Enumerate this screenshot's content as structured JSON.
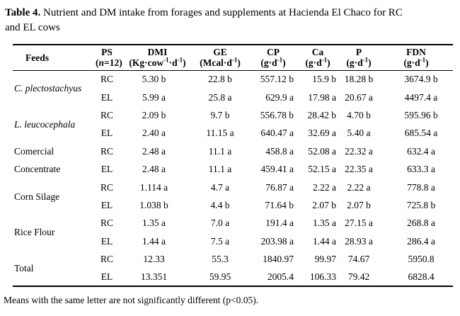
{
  "caption": {
    "label": "Table 4.",
    "line1": " Nutrient and DM intake from forages and supplements at Hacienda El Chaco for RC",
    "line2": "and EL cows"
  },
  "table": {
    "headers": {
      "feeds": {
        "label": "Feeds"
      },
      "ps": {
        "label": "PS",
        "unit_pre": "(",
        "unit_n": "n",
        "unit_post": "=12)"
      },
      "dmi": {
        "label": "DMI",
        "unit_pre": "(Kg·cow",
        "unit_sup1": "-1",
        "unit_mid": "·d",
        "unit_sup2": "-1",
        "unit_post": ")"
      },
      "ge": {
        "label": "GE",
        "unit_pre": "(Mcal·d",
        "unit_sup1": "-1",
        "unit_post": ")"
      },
      "cp": {
        "label": "CP",
        "unit_pre": "(g·d",
        "unit_sup1": "-1",
        "unit_post": ")"
      },
      "ca": {
        "label": "Ca",
        "unit_pre": "(g·d",
        "unit_sup1": "-1",
        "unit_post": ")"
      },
      "p": {
        "label": "P",
        "unit_pre": "(g·d",
        "unit_sup1": "-1",
        "unit_post": ")"
      },
      "fdn": {
        "label": "FDN",
        "unit_pre": "(g·d",
        "unit_sup1": "-1",
        "unit_post": ")"
      }
    },
    "groups": [
      {
        "feed": "C. plectostachyus",
        "italic": true,
        "rows": [
          [
            "RC",
            "5.30 b",
            "22.8 b",
            "557.12 b",
            "15.9 b",
            "18.28 b",
            "3674.9 b"
          ],
          [
            "EL",
            "5.99 a",
            "25.8 a",
            "629.9 a",
            "17.98 a",
            "20.67 a",
            "4497.4 a"
          ]
        ]
      },
      {
        "feed": "L. leucocephala",
        "italic": true,
        "rows": [
          [
            "RC",
            "2.09 b",
            "9.7 b",
            "556.78 b",
            "28.42 b",
            "4.70 b",
            "595.96 b"
          ],
          [
            "EL",
            "2.40 a",
            "11.15 a",
            "640.47 a",
            "32.69 a",
            "5.40 a",
            "685.54 a"
          ]
        ]
      },
      {
        "feed": "Comercial Concentrate",
        "italic": false,
        "rows": [
          [
            "RC",
            "2.48 a",
            "11.1 a",
            "458.8 a",
            "52.08 a",
            "22.32 a",
            "632.4 a"
          ],
          [
            "EL",
            "2.48 a",
            "11.1 a",
            "459.41 a",
            "52.15 a",
            "22.35 a",
            "633.3 a"
          ]
        ]
      },
      {
        "feed": "Corn Silage",
        "italic": false,
        "rows": [
          [
            "RC",
            "1.114 a",
            "4.7 a",
            "76.87 a",
            "2.22 a",
            "2.22 a",
            "778.8 a"
          ],
          [
            "EL",
            "1.038 b",
            "4.4 b",
            "71.64 b",
            "2.07 b",
            "2.07 b",
            "725.8 b"
          ]
        ]
      },
      {
        "feed": "Rice Flour",
        "italic": false,
        "rows": [
          [
            "RC",
            "1.35 a",
            "7.0 a",
            "191.4 a",
            "1.35 a",
            "27.15 a",
            "268.8 a"
          ],
          [
            "EL",
            "1.44 a",
            "7.5 a",
            "203.98 a",
            "1.44 a",
            "28.93 a",
            "286.4 a"
          ]
        ]
      },
      {
        "feed": "Total",
        "italic": false,
        "rows": [
          [
            "RC",
            "12.33",
            "55.3",
            "1840.97",
            "99.97",
            "74.67",
            "5950.8"
          ],
          [
            "EL",
            "13.351",
            "59.95",
            "2005.4",
            "106.33",
            "79.42",
            "6828.4"
          ]
        ]
      }
    ]
  },
  "footnote": "Means with the same letter are not significantly different (p<0.05)."
}
